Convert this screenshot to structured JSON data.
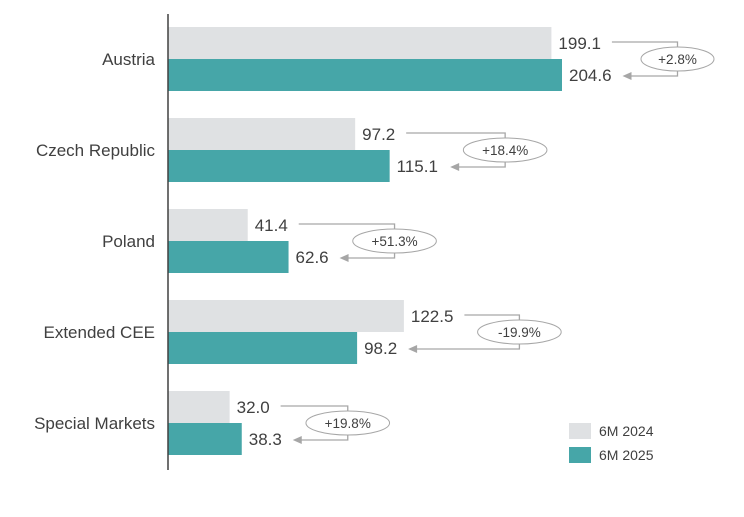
{
  "chart_data": {
    "type": "bar",
    "orientation": "horizontal",
    "categories": [
      "Austria",
      "Czech Republic",
      "Poland",
      "Extended CEE",
      "Special Markets"
    ],
    "series": [
      {
        "name": "6M 2024",
        "color": "#dfe1e3",
        "values": [
          199.1,
          97.2,
          41.4,
          122.5,
          32.0
        ]
      },
      {
        "name": "6M 2025",
        "color": "#46a6a8",
        "values": [
          204.6,
          115.1,
          62.6,
          98.2,
          38.3
        ]
      }
    ],
    "value_labels": {
      "6M 2024": [
        "199.1",
        "97.2",
        "41.4",
        "122.5",
        "32.0"
      ],
      "6M 2025": [
        "204.6",
        "115.1",
        "62.6",
        "98.2",
        "38.3"
      ]
    },
    "changes": [
      "+2.8%",
      "+18.4%",
      "+51.3%",
      "-19.9%",
      "+19.8%"
    ],
    "legend": {
      "position": "bottom-right",
      "entries": [
        "6M 2024",
        "6M 2025"
      ]
    },
    "xlim": [
      0,
      225
    ],
    "grid": false
  }
}
